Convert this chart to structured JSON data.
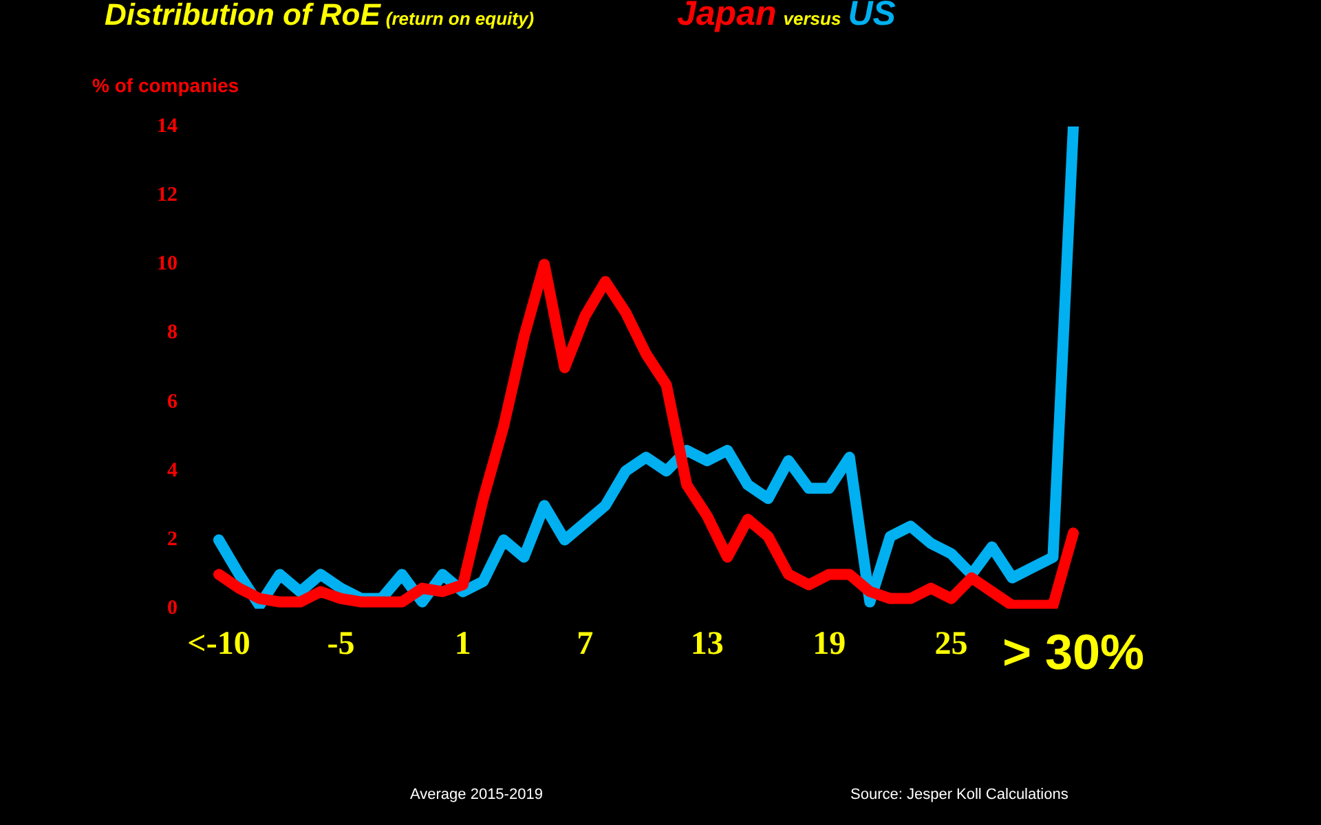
{
  "chart_data": {
    "type": "line",
    "title": "Distribution of RoE",
    "subtitle": "(return on equity)",
    "ylabel": "% of companies",
    "categories": [
      "<-10",
      null,
      null,
      null,
      null,
      null,
      "-5",
      null,
      null,
      null,
      null,
      null,
      "1",
      null,
      null,
      null,
      null,
      null,
      "7",
      null,
      null,
      null,
      null,
      null,
      "13",
      null,
      null,
      null,
      null,
      null,
      "19",
      null,
      null,
      null,
      null,
      null,
      "25",
      null,
      null,
      null,
      null,
      null,
      "> 30%"
    ],
    "series": [
      {
        "name": "Japan",
        "color": "#ff0000",
        "values": [
          1.0,
          0.6,
          0.3,
          0.2,
          0.2,
          0.5,
          0.3,
          0.2,
          0.2,
          0.2,
          0.6,
          0.5,
          0.7,
          3.2,
          5.3,
          7.9,
          10.0,
          7.0,
          8.5,
          9.5,
          8.6,
          7.4,
          6.5,
          3.6,
          2.7,
          1.5,
          2.6,
          2.1,
          1.0,
          0.7,
          1.0,
          1.0,
          0.5,
          0.3,
          0.3,
          0.6,
          0.3,
          0.9,
          0.5,
          0.1,
          0.1,
          0.1,
          2.2
        ]
      },
      {
        "name": "US",
        "color": "#00b0f0",
        "values": [
          2.0,
          1.0,
          0.1,
          1.0,
          0.5,
          1.0,
          0.6,
          0.3,
          0.3,
          1.0,
          0.2,
          1.0,
          0.5,
          0.8,
          2.0,
          1.5,
          3.0,
          2.0,
          2.5,
          3.0,
          4.0,
          4.4,
          4.0,
          4.6,
          4.3,
          4.6,
          3.6,
          3.2,
          4.3,
          3.5,
          3.5,
          4.4,
          0.2,
          2.1,
          2.4,
          1.9,
          1.6,
          1.0,
          1.8,
          0.9,
          1.2,
          1.5,
          14.0
        ]
      }
    ],
    "ylim": [
      0,
      14
    ],
    "yticks": [
      0,
      2,
      4,
      6,
      8,
      10,
      12,
      14
    ],
    "grid": false,
    "legend": "top",
    "marker": "none",
    "line_style": "solid",
    "annotations": [
      "versus",
      "Average 2015-2019",
      "Source: Jesper Koll Calculations"
    ]
  }
}
